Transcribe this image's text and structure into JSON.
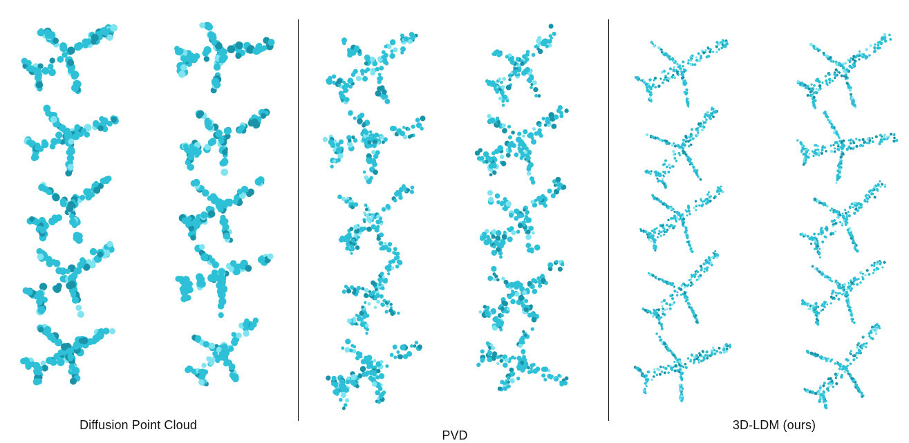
{
  "panels": [
    {
      "caption": "Diffusion Point Cloud",
      "style": "blobby",
      "samples": 10
    },
    {
      "caption": "PVD",
      "style": "scattered",
      "samples": 10
    },
    {
      "caption": "3D-LDM (ours)",
      "style": "fine",
      "samples": 10
    }
  ],
  "colors": {
    "point_fill": "#2ec0d6",
    "point_highlight": "#7fe3f0",
    "point_shadow": "#1a93a8",
    "divider": "#111111",
    "caption_text": "#111111"
  },
  "icons": [
    "airplane-point-cloud-icon"
  ]
}
